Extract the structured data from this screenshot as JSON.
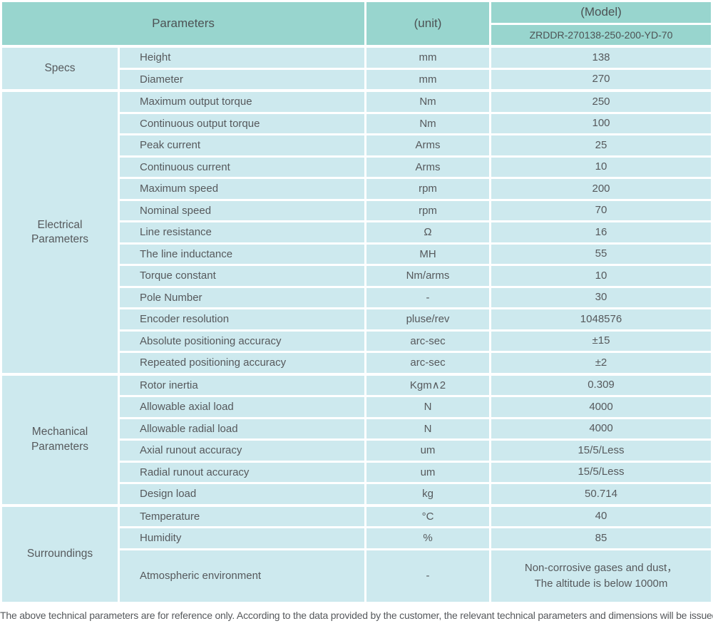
{
  "colors": {
    "header_bg": "#98d5ce",
    "cell_bg": "#cde9ee",
    "text": "#56595c"
  },
  "header": {
    "parameters_label": "Parameters",
    "unit_label": "(unit)",
    "model_label": "(Model)",
    "model_value": "ZRDDR-270138-250-200-YD-70"
  },
  "sections": [
    {
      "label": "Specs",
      "rows": [
        {
          "name": "Height",
          "unit": "mm",
          "value": "138"
        },
        {
          "name": "Diameter",
          "unit": "mm",
          "value": "270"
        }
      ]
    },
    {
      "label": "Electrical\nParameters",
      "rows": [
        {
          "name": "Maximum output torque",
          "unit": "Nm",
          "value": "250"
        },
        {
          "name": "Continuous output torque",
          "unit": "Nm",
          "value": "100"
        },
        {
          "name": "Peak current",
          "unit": "Arms",
          "value": "25"
        },
        {
          "name": "Continuous current",
          "unit": "Arms",
          "value": "10"
        },
        {
          "name": "Maximum speed",
          "unit": "rpm",
          "value": "200"
        },
        {
          "name": "Nominal speed",
          "unit": "rpm",
          "value": "70"
        },
        {
          "name": "Line resistance",
          "unit": "Ω",
          "value": "16"
        },
        {
          "name": "The line inductance",
          "unit": "MH",
          "value": "55"
        },
        {
          "name": "Torque constant",
          "unit": "Nm/arms",
          "value": "10"
        },
        {
          "name": "Pole Number",
          "unit": "-",
          "value": "30"
        },
        {
          "name": "Encoder resolution",
          "unit": "pluse/rev",
          "value": "1048576"
        },
        {
          "name": "Absolute positioning accuracy",
          "unit": "arc-sec",
          "value": "±15"
        },
        {
          "name": "Repeated positioning accuracy",
          "unit": "arc-sec",
          "value": "±2"
        }
      ]
    },
    {
      "label": "Mechanical\nParameters",
      "rows": [
        {
          "name": "Rotor inertia",
          "unit": "Kgm∧2",
          "value": "0.309"
        },
        {
          "name": "Allowable axial load",
          "unit": "N",
          "value": "4000"
        },
        {
          "name": "Allowable radial load",
          "unit": "N",
          "value": "4000"
        },
        {
          "name": "Axial runout accuracy",
          "unit": "um",
          "value": "15/5/Less"
        },
        {
          "name": "Radial runout accuracy",
          "unit": "um",
          "value": "15/5/Less"
        },
        {
          "name": "Design load",
          "unit": "kg",
          "value": "50.714"
        }
      ]
    },
    {
      "label": "Surroundings",
      "rows": [
        {
          "name": "Temperature",
          "unit": "°C",
          "value": "40"
        },
        {
          "name": "Humidity",
          "unit": "%",
          "value": "85"
        },
        {
          "name": "Atmospheric environment",
          "unit": "-",
          "value": "Non-corrosive gases and dust，\nThe altitude is below 1000m",
          "tall": true
        }
      ]
    }
  ],
  "footer_note": "The above technical parameters are for reference only. According to the data provided by the customer, the relevant technical parameters and dimensions will be issued."
}
